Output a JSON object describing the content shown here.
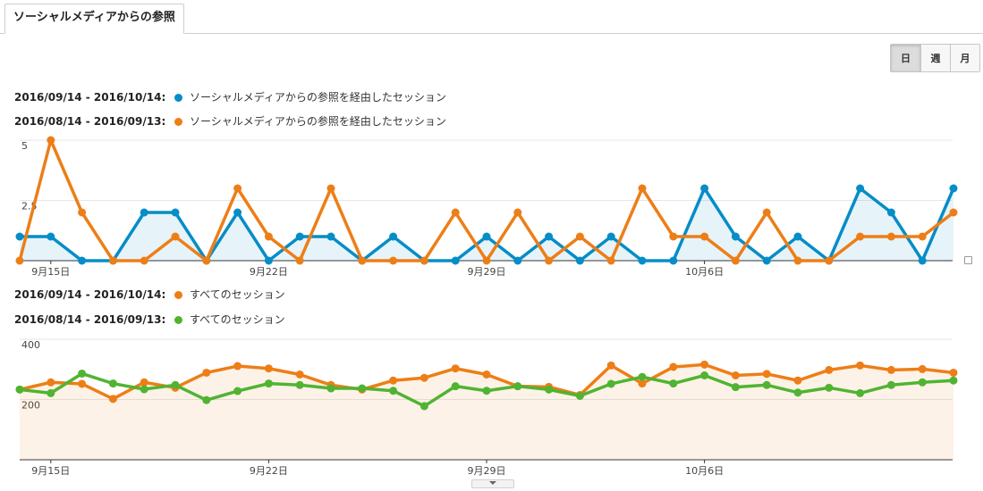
{
  "tab": {
    "label": "ソーシャルメディアからの参照"
  },
  "period_buttons": [
    {
      "label": "日"
    },
    {
      "label": "週"
    },
    {
      "label": "月"
    }
  ],
  "chart1": {
    "legend": [
      {
        "range": "2016/09/14 - 2016/10/14:",
        "name": "ソーシャルメディアからの参照を経由したセッション",
        "color": "#058dc7"
      },
      {
        "range": "2016/08/14 - 2016/09/13:",
        "name": "ソーシャルメディアからの参照を経由したセッション",
        "color": "#ed7e17"
      }
    ]
  },
  "chart2": {
    "legend": [
      {
        "range": "2016/09/14 - 2016/10/14:",
        "name": "すべてのセッション",
        "color": "#ed7e17"
      },
      {
        "range": "2016/08/14 - 2016/09/13:",
        "name": "すべてのセッション",
        "color": "#50b432"
      }
    ]
  },
  "chart_data": [
    {
      "type": "line",
      "title": "",
      "x_ticks": [
        "9月15日",
        "9月22日",
        "9月29日",
        "10月6日"
      ],
      "y_ticks": [
        "5",
        "2.5"
      ],
      "ylim": [
        0,
        5
      ],
      "grid": true,
      "series": [
        {
          "name": "ソーシャルメディアからの参照を経由したセッション",
          "range": "2016/09/14 - 2016/10/14",
          "color": "#058dc7",
          "fill": true,
          "values": [
            1,
            1,
            0,
            0,
            2,
            2,
            0,
            2,
            0,
            1,
            1,
            0,
            1,
            0,
            0,
            1,
            0,
            1,
            0,
            1,
            0,
            0,
            3,
            1,
            0,
            1,
            0,
            3,
            2,
            0,
            3
          ]
        },
        {
          "name": "ソーシャルメディアからの参照を経由したセッション",
          "range": "2016/08/14 - 2016/09/13",
          "color": "#ed7e17",
          "fill": false,
          "values": [
            0,
            5,
            2,
            0,
            0,
            1,
            0,
            3,
            1,
            0,
            3,
            0,
            0,
            0,
            2,
            0,
            2,
            0,
            1,
            0,
            3,
            1,
            1,
            0,
            2,
            0,
            0,
            1,
            1,
            1,
            2
          ]
        }
      ]
    },
    {
      "type": "line",
      "title": "",
      "x_ticks": [
        "9月15日",
        "9月22日",
        "9月29日",
        "10月6日"
      ],
      "y_ticks": [
        "400",
        "200"
      ],
      "ylim": [
        0,
        400
      ],
      "grid": true,
      "series": [
        {
          "name": "すべてのセッション",
          "range": "2016/09/14 - 2016/10/14",
          "color": "#ed7e17",
          "fill": true,
          "values": [
            233,
            257,
            252,
            202,
            257,
            239,
            289,
            311,
            303,
            283,
            248,
            233,
            263,
            272,
            303,
            283,
            244,
            242,
            215,
            313,
            253,
            308,
            316,
            280,
            285,
            263,
            298,
            313,
            298,
            301,
            289
          ]
        },
        {
          "name": "すべてのセッション",
          "range": "2016/08/14 - 2016/09/13",
          "color": "#50b432",
          "fill": false,
          "values": [
            233,
            221,
            286,
            253,
            234,
            248,
            198,
            228,
            253,
            248,
            237,
            237,
            229,
            178,
            244,
            229,
            244,
            233,
            212,
            252,
            275,
            253,
            280,
            241,
            248,
            223,
            239,
            221,
            248,
            257,
            263
          ]
        }
      ]
    }
  ]
}
